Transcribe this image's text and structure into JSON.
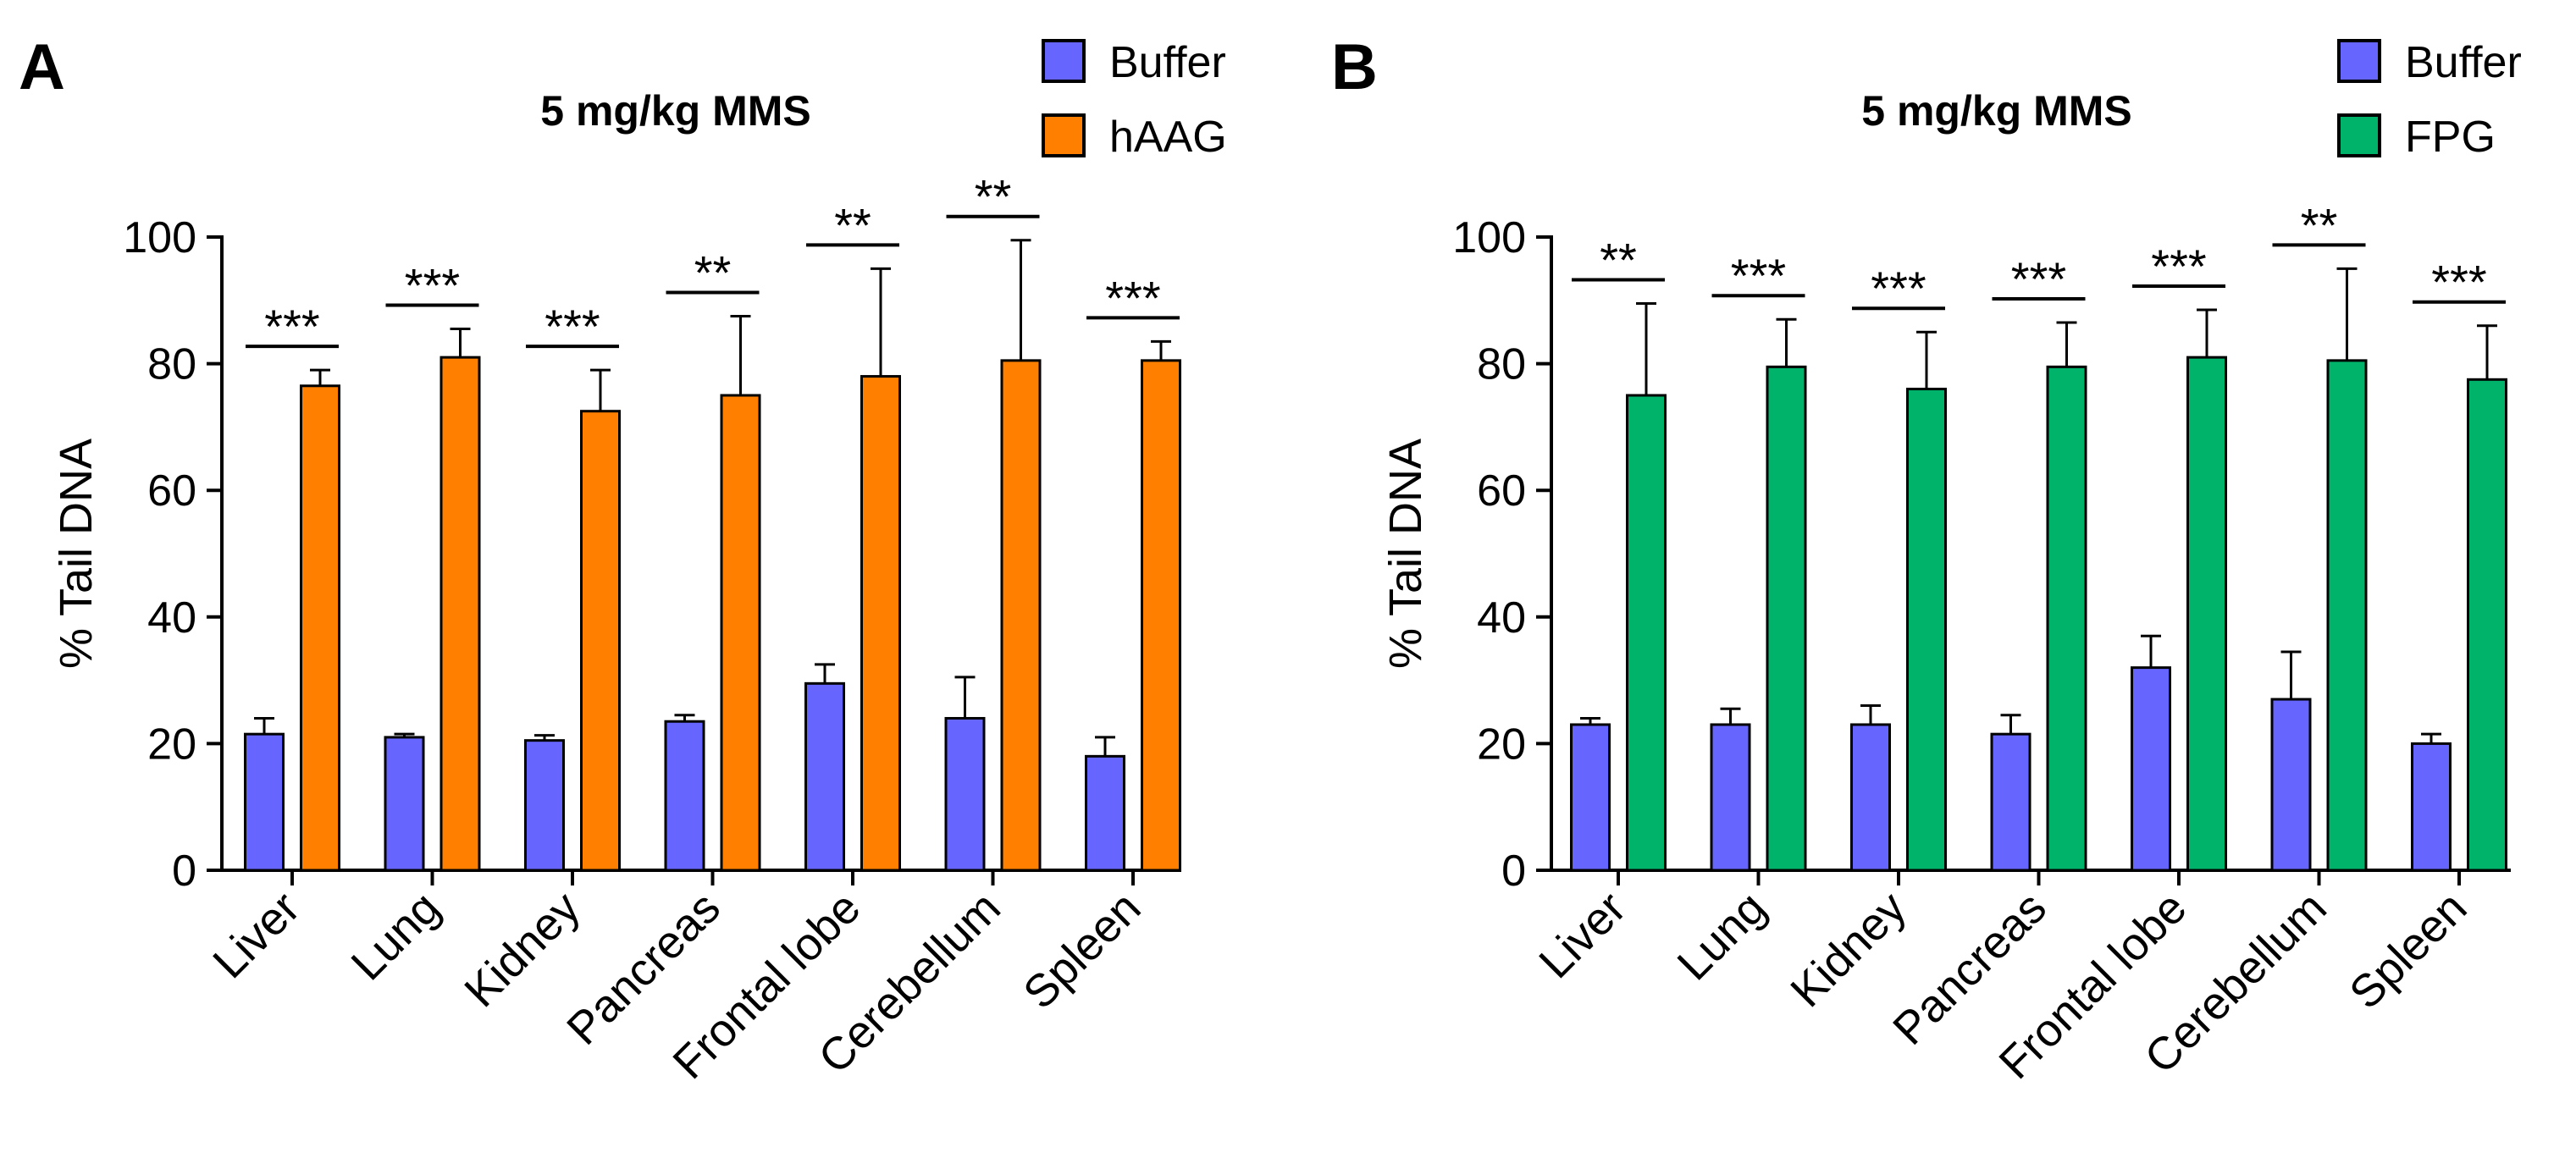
{
  "chart_data": [
    {
      "type": "bar",
      "panel_label": "A",
      "title": "5 mg/kg MMS",
      "xlabel": "",
      "ylabel": "% Tail DNA",
      "ylim": [
        0,
        100
      ],
      "yticks": [
        0,
        20,
        40,
        60,
        80,
        100
      ],
      "grid": false,
      "legend_position": "top-right",
      "categories": [
        "Liver",
        "Lung",
        "Kidney",
        "Pancreas",
        "Frontal lobe",
        "Cerebellum",
        "Spleen"
      ],
      "series": [
        {
          "name": "Buffer",
          "color": "#6666ff",
          "values": [
            21.5,
            21,
            20.5,
            23.5,
            29.5,
            24,
            18
          ],
          "errors": [
            2.5,
            0.5,
            0.8,
            1.0,
            3.0,
            6.5,
            3.0
          ]
        },
        {
          "name": "hAAG",
          "color": "#ff8000",
          "values": [
            76.5,
            81,
            72.5,
            75,
            78,
            80.5,
            80.5
          ],
          "errors": [
            2.5,
            4.5,
            6.5,
            12.5,
            17,
            19,
            3
          ]
        }
      ],
      "significance": [
        "***",
        "***",
        "***",
        "**",
        "**",
        "**",
        "***"
      ]
    },
    {
      "type": "bar",
      "panel_label": "B",
      "title": "5 mg/kg MMS",
      "xlabel": "",
      "ylabel": "% Tail DNA",
      "ylim": [
        0,
        100
      ],
      "yticks": [
        0,
        20,
        40,
        60,
        80,
        100
      ],
      "grid": false,
      "legend_position": "top-right",
      "categories": [
        "Liver",
        "Lung",
        "Kidney",
        "Pancreas",
        "Frontal lobe",
        "Cerebellum",
        "Spleen"
      ],
      "series": [
        {
          "name": "Buffer",
          "color": "#6666ff",
          "values": [
            23,
            23,
            23,
            21.5,
            32,
            27,
            20
          ],
          "errors": [
            1.0,
            2.5,
            3.0,
            3.0,
            5.0,
            7.5,
            1.5
          ]
        },
        {
          "name": "FPG",
          "color": "#00b36b",
          "values": [
            75,
            79.5,
            76,
            79.5,
            81,
            80.5,
            77.5
          ],
          "errors": [
            14.5,
            7.5,
            9,
            7,
            7.5,
            14.5,
            8.5
          ]
        }
      ],
      "significance": [
        "**",
        "***",
        "***",
        "***",
        "***",
        "**",
        "***"
      ]
    }
  ]
}
